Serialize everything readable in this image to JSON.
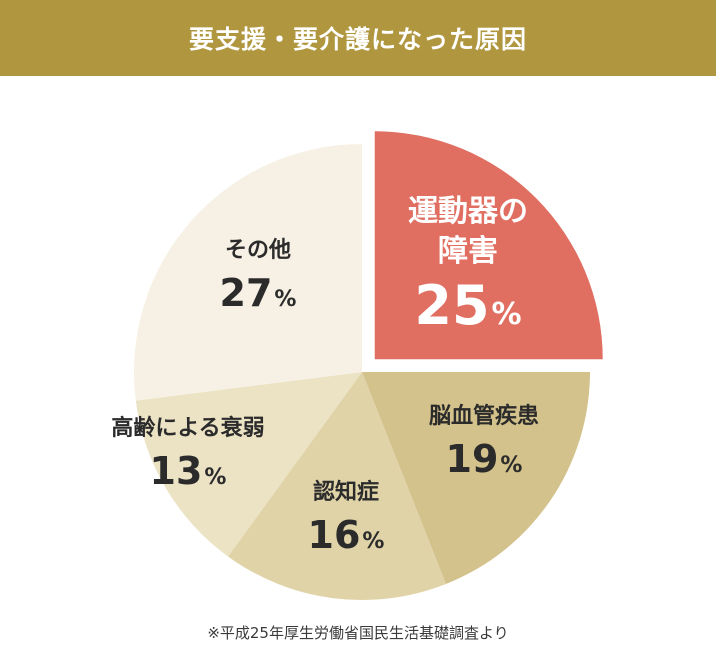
{
  "header": {
    "title": "要支援・要介護になった原因",
    "bg_color": "#b0963e"
  },
  "chart_data": {
    "type": "pie",
    "title": "要支援・要介護になった原因",
    "unit": "%",
    "start": "12 o'clock, clockwise",
    "slices": [
      {
        "label": "運動器の障害",
        "label_lines": [
          "運動器の",
          "障害"
        ],
        "value": 25,
        "color": "#e06e61",
        "emphasis": true
      },
      {
        "label": "脳血管疾患",
        "label_lines": [
          "脳血管疾患"
        ],
        "value": 19,
        "color": "#d3c28b"
      },
      {
        "label": "認知症",
        "label_lines": [
          "認知症"
        ],
        "value": 16,
        "color": "#e0d3a8"
      },
      {
        "label": "高齢による衰弱",
        "label_lines": [
          "高齢による衰弱"
        ],
        "value": 13,
        "color": "#ece3c5"
      },
      {
        "label": "その他",
        "label_lines": [
          "その他"
        ],
        "value": 27,
        "color": "#f6f1e4"
      }
    ]
  },
  "source": "※平成25年厚生労働省国民生活基礎調査より"
}
